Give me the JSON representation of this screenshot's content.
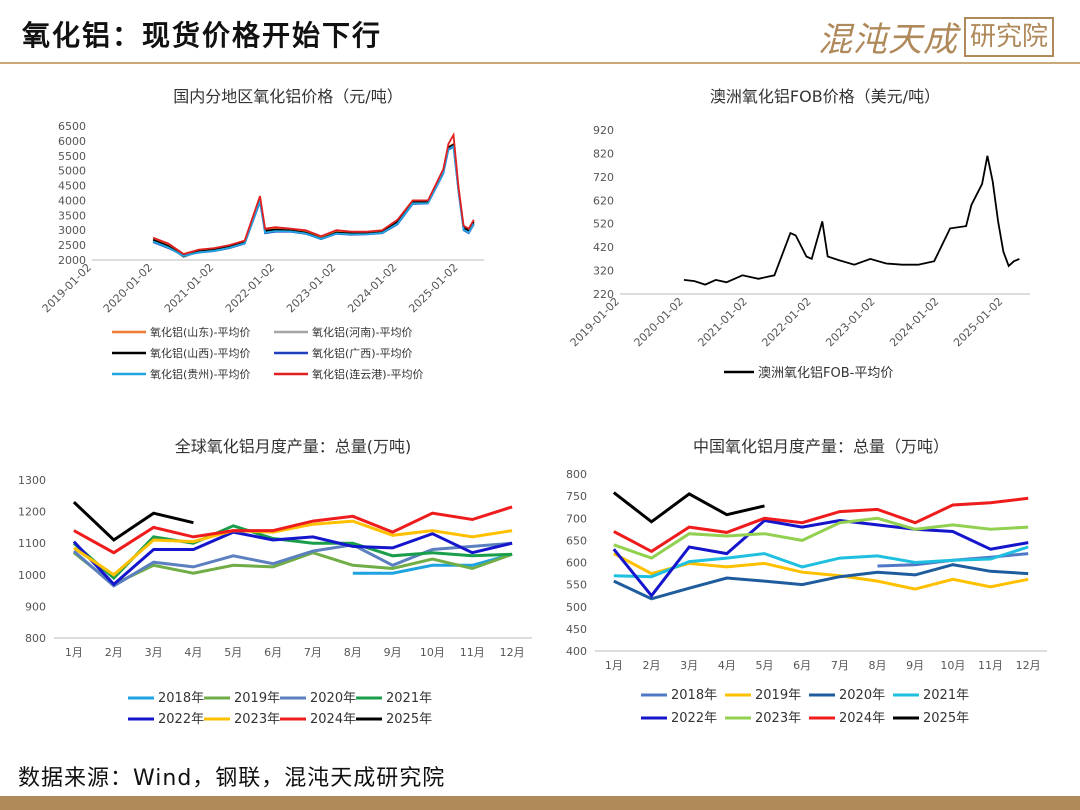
{
  "header": {
    "title": "氧化铝：现货价格开始下行",
    "brand_calligraphy": "混沌天成",
    "brand_boxed": "研究院"
  },
  "footer": {
    "source": "数据来源：Wind，钢联，混沌天成研究院"
  },
  "chart_data": [
    {
      "type": "line",
      "title": "国内分地区氧化铝价格（元/吨）",
      "x_ticks": [
        "2019-01-02",
        "2020-01-02",
        "2021-01-02",
        "2022-01-02",
        "2023-01-02",
        "2024-01-02",
        "2025-01-02"
      ],
      "ylim": [
        2000,
        6500
      ],
      "y_ticks": [
        2000,
        2500,
        3000,
        3500,
        4000,
        4500,
        5000,
        5500,
        6000,
        6500
      ],
      "x": [
        "2020-01",
        "2020-04",
        "2020-07",
        "2020-10",
        "2021-01",
        "2021-04",
        "2021-07",
        "2021-10",
        "2021-11",
        "2022-01",
        "2022-04",
        "2022-07",
        "2022-10",
        "2023-01",
        "2023-04",
        "2023-07",
        "2023-10",
        "2024-01",
        "2024-04",
        "2024-07",
        "2024-10",
        "2024-11",
        "2024-12",
        "2025-01",
        "2025-02",
        "2025-03",
        "2025-04"
      ],
      "series": [
        {
          "name": "氧化铝(山东)-平均价",
          "color": "#ed7d31",
          "values": [
            2700,
            2500,
            2150,
            2300,
            2350,
            2450,
            2600,
            4100,
            3000,
            3050,
            3000,
            2950,
            2750,
            2950,
            2900,
            2900,
            2950,
            3300,
            3950,
            3950,
            5000,
            5800,
            5900,
            4400,
            3100,
            3000,
            3300
          ]
        },
        {
          "name": "氧化铝(河南)-平均价",
          "color": "#a5a5a5",
          "values": [
            2650,
            2450,
            2100,
            2280,
            2330,
            2430,
            2580,
            4000,
            2950,
            3000,
            2980,
            2900,
            2700,
            2900,
            2880,
            2880,
            2920,
            3250,
            3920,
            3930,
            4950,
            5750,
            5850,
            4350,
            3050,
            2950,
            3250
          ]
        },
        {
          "name": "氧化铝(山西)-平均价",
          "color": "#000000",
          "values": [
            2680,
            2470,
            2120,
            2290,
            2340,
            2440,
            2590,
            4050,
            2980,
            3020,
            2990,
            2920,
            2720,
            2920,
            2890,
            2890,
            2930,
            3280,
            3940,
            3940,
            4980,
            5780,
            5870,
            4380,
            3080,
            2980,
            3280
          ]
        },
        {
          "name": "氧化铝(广西)-平均价",
          "color": "#1f3fbf",
          "values": [
            2600,
            2400,
            2150,
            2250,
            2300,
            2400,
            2550,
            3950,
            2900,
            2950,
            2950,
            2880,
            2700,
            2880,
            2850,
            2860,
            2900,
            3200,
            3880,
            3900,
            4900,
            5700,
            5800,
            4300,
            3000,
            2900,
            3200
          ]
        },
        {
          "name": "氧化铝(贵州)-平均价",
          "color": "#22a7e0",
          "values": [
            2620,
            2420,
            2130,
            2260,
            2310,
            2410,
            2560,
            3980,
            2920,
            2970,
            2960,
            2890,
            2710,
            2890,
            2860,
            2870,
            2910,
            3220,
            3900,
            3910,
            4920,
            5720,
            5820,
            4320,
            3020,
            2920,
            3220
          ]
        },
        {
          "name": "氧化铝(连云港)-平均价",
          "color": "#e02020",
          "values": [
            2750,
            2550,
            2200,
            2350,
            2400,
            2500,
            2650,
            4150,
            3050,
            3100,
            3050,
            3000,
            2800,
            3000,
            2950,
            2950,
            3000,
            3350,
            4000,
            4000,
            5050,
            5900,
            6200,
            4450,
            3150,
            3050,
            3350
          ]
        }
      ]
    },
    {
      "type": "line",
      "title": "澳洲氧化铝FOB价格（美元/吨）",
      "x_ticks": [
        "2019-01-02",
        "2020-01-02",
        "2021-01-02",
        "2022-01-02",
        "2023-01-02",
        "2024-01-02",
        "2025-01-02"
      ],
      "ylim": [
        220,
        920
      ],
      "y_ticks": [
        220,
        320,
        420,
        520,
        620,
        720,
        820,
        920
      ],
      "x": [
        "2020-01",
        "2020-03",
        "2020-05",
        "2020-07",
        "2020-09",
        "2020-12",
        "2021-03",
        "2021-06",
        "2021-09",
        "2021-10",
        "2021-12",
        "2022-01",
        "2022-03",
        "2022-04",
        "2022-06",
        "2022-09",
        "2022-12",
        "2023-03",
        "2023-06",
        "2023-09",
        "2023-12",
        "2024-03",
        "2024-06",
        "2024-07",
        "2024-09",
        "2024-10",
        "2024-11",
        "2024-12",
        "2025-01",
        "2025-02",
        "2025-03",
        "2025-04"
      ],
      "series": [
        {
          "name": "澳洲氧化铝FOB-平均价",
          "color": "#000000",
          "values": [
            280,
            275,
            260,
            280,
            270,
            300,
            285,
            300,
            480,
            470,
            380,
            370,
            530,
            380,
            365,
            345,
            370,
            350,
            345,
            345,
            360,
            500,
            510,
            600,
            690,
            810,
            700,
            530,
            400,
            340,
            360,
            370
          ]
        }
      ]
    },
    {
      "type": "line",
      "title": "全球氧化铝月度产量：总量(万吨)",
      "categories": [
        "1月",
        "2月",
        "3月",
        "4月",
        "5月",
        "6月",
        "7月",
        "8月",
        "9月",
        "10月",
        "11月",
        "12月"
      ],
      "ylim": [
        800,
        1300
      ],
      "y_ticks": [
        800,
        900,
        1000,
        1100,
        1200,
        1300
      ],
      "series": [
        {
          "name": "2018年",
          "color": "#1fa3e0",
          "values": [
            null,
            null,
            null,
            null,
            null,
            null,
            null,
            1005,
            1005,
            1030,
            1030,
            1065
          ]
        },
        {
          "name": "2019年",
          "color": "#70ad47",
          "values": [
            1070,
            970,
            1030,
            1005,
            1030,
            1025,
            1070,
            1030,
            1020,
            1050,
            1020,
            1065
          ]
        },
        {
          "name": "2020年",
          "color": "#5b7fbf",
          "values": [
            1075,
            965,
            1040,
            1025,
            1060,
            1035,
            1075,
            1095,
            1030,
            1080,
            1090,
            1100
          ]
        },
        {
          "name": "2021年",
          "color": "#1a9e4b",
          "values": [
            1100,
            990,
            1120,
            1100,
            1155,
            1115,
            1100,
            1100,
            1060,
            1070,
            1060,
            1065
          ]
        },
        {
          "name": "2022年",
          "color": "#1515cc",
          "values": [
            1105,
            970,
            1080,
            1080,
            1135,
            1110,
            1120,
            1090,
            1085,
            1130,
            1070,
            1100
          ]
        },
        {
          "name": "2023年",
          "color": "#ffc000",
          "values": [
            1085,
            1000,
            1110,
            1105,
            1140,
            1135,
            1160,
            1170,
            1125,
            1140,
            1120,
            1140
          ]
        },
        {
          "name": "2024年",
          "color": "#ee1c1c",
          "values": [
            1140,
            1070,
            1150,
            1120,
            1140,
            1140,
            1170,
            1185,
            1135,
            1195,
            1175,
            1215
          ]
        },
        {
          "name": "2025年",
          "color": "#000000",
          "values": [
            1230,
            1110,
            1195,
            1165,
            null,
            null,
            null,
            null,
            null,
            null,
            null,
            null
          ]
        }
      ]
    },
    {
      "type": "line",
      "title": "中国氧化铝月度产量：总量（万吨）",
      "categories": [
        "1月",
        "2月",
        "3月",
        "4月",
        "5月",
        "6月",
        "7月",
        "8月",
        "9月",
        "10月",
        "11月",
        "12月"
      ],
      "ylim": [
        400,
        800
      ],
      "y_ticks": [
        400,
        450,
        500,
        550,
        600,
        650,
        700,
        750,
        800
      ],
      "series": [
        {
          "name": "2018年",
          "color": "#4f79c6",
          "values": [
            null,
            null,
            null,
            null,
            null,
            null,
            null,
            592,
            595,
            605,
            612,
            620
          ]
        },
        {
          "name": "2019年",
          "color": "#ffc000",
          "values": [
            620,
            575,
            598,
            590,
            598,
            578,
            570,
            558,
            540,
            562,
            545,
            562
          ]
        },
        {
          "name": "2020年",
          "color": "#1f5c9e",
          "values": [
            558,
            518,
            542,
            565,
            558,
            550,
            568,
            578,
            572,
            595,
            580,
            575
          ]
        },
        {
          "name": "2021年",
          "color": "#1fbfe0",
          "values": [
            570,
            568,
            602,
            610,
            620,
            590,
            610,
            615,
            600,
            605,
            608,
            635
          ]
        },
        {
          "name": "2022年",
          "color": "#1515cc",
          "values": [
            630,
            525,
            635,
            620,
            695,
            680,
            695,
            685,
            675,
            670,
            630,
            645
          ]
        },
        {
          "name": "2023年",
          "color": "#92d050",
          "values": [
            640,
            610,
            665,
            660,
            665,
            650,
            690,
            700,
            675,
            685,
            675,
            680
          ]
        },
        {
          "name": "2024年",
          "color": "#ee1c1c",
          "values": [
            670,
            625,
            680,
            668,
            700,
            690,
            715,
            720,
            690,
            730,
            735,
            745
          ]
        },
        {
          "name": "2025年",
          "color": "#000000",
          "values": [
            758,
            692,
            755,
            708,
            728,
            null,
            null,
            null,
            null,
            null,
            null,
            null
          ]
        }
      ]
    }
  ]
}
